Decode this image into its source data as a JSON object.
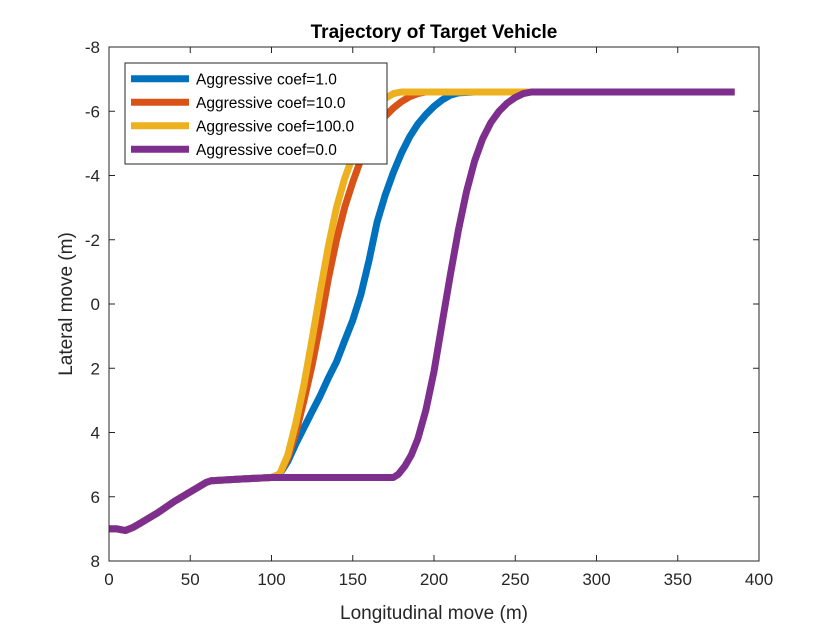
{
  "chart_data": {
    "type": "line",
    "title": "Trajectory of Target Vehicle",
    "xlabel": "Longitudinal move (m)",
    "ylabel": "Lateral move (m)",
    "xlim": [
      0,
      400
    ],
    "ylim": [
      8,
      -8
    ],
    "y_reversed": true,
    "xticks": [
      0,
      50,
      100,
      150,
      200,
      250,
      300,
      350,
      400
    ],
    "yticks": [
      8,
      6,
      4,
      2,
      0,
      -2,
      -4,
      -6,
      -8
    ],
    "grid": false,
    "legend_position": "top-left",
    "series": [
      {
        "name": "Aggressive coef=1.0",
        "color": "#0072BD",
        "x": [
          0,
          5,
          10,
          15,
          20,
          30,
          40,
          50,
          60,
          63,
          80,
          100,
          105,
          110,
          115,
          120,
          125,
          130,
          135,
          140,
          145,
          150,
          155,
          160,
          165,
          170,
          175,
          180,
          185,
          190,
          195,
          200,
          205,
          210,
          215,
          225,
          260,
          385
        ],
        "y": [
          7.0,
          7.0,
          7.05,
          6.95,
          6.8,
          6.5,
          6.15,
          5.85,
          5.55,
          5.5,
          5.45,
          5.4,
          5.3,
          4.9,
          4.35,
          3.85,
          3.35,
          2.85,
          2.3,
          1.8,
          1.15,
          0.5,
          -0.3,
          -1.35,
          -2.55,
          -3.4,
          -4.1,
          -4.7,
          -5.2,
          -5.6,
          -5.9,
          -6.15,
          -6.35,
          -6.5,
          -6.57,
          -6.6,
          -6.6,
          -6.6
        ]
      },
      {
        "name": "Aggressive coef=10.0",
        "color": "#D95319",
        "x": [
          0,
          5,
          10,
          15,
          20,
          30,
          40,
          50,
          60,
          63,
          80,
          100,
          105,
          110,
          115,
          120,
          125,
          130,
          135,
          140,
          145,
          150,
          155,
          160,
          165,
          170,
          175,
          180,
          185,
          190,
          195,
          200,
          260,
          385
        ],
        "y": [
          7.0,
          7.0,
          7.05,
          6.95,
          6.8,
          6.5,
          6.15,
          5.85,
          5.55,
          5.5,
          5.45,
          5.4,
          5.3,
          4.8,
          4.0,
          3.0,
          1.9,
          0.6,
          -0.8,
          -2.0,
          -3.0,
          -3.8,
          -4.5,
          -5.1,
          -5.5,
          -5.85,
          -6.1,
          -6.3,
          -6.45,
          -6.55,
          -6.6,
          -6.6,
          -6.6,
          -6.6
        ]
      },
      {
        "name": "Aggressive coef=100.0",
        "color": "#EDB120",
        "x": [
          0,
          5,
          10,
          15,
          20,
          30,
          40,
          50,
          60,
          63,
          80,
          100,
          105,
          110,
          115,
          120,
          125,
          130,
          135,
          140,
          145,
          150,
          155,
          160,
          165,
          170,
          175,
          180,
          185,
          260,
          385
        ],
        "y": [
          7.0,
          7.0,
          7.05,
          6.95,
          6.8,
          6.5,
          6.15,
          5.85,
          5.55,
          5.5,
          5.45,
          5.4,
          5.3,
          4.7,
          3.7,
          2.5,
          1.1,
          -0.4,
          -1.8,
          -3.0,
          -3.9,
          -4.6,
          -5.2,
          -5.7,
          -6.1,
          -6.4,
          -6.55,
          -6.6,
          -6.6,
          -6.6,
          -6.6
        ]
      },
      {
        "name": "Aggressive coef=0.0",
        "color": "#7E2F8E",
        "x": [
          0,
          5,
          10,
          15,
          20,
          30,
          40,
          50,
          60,
          63,
          80,
          100,
          150,
          175,
          178,
          182,
          186,
          190,
          195,
          200,
          205,
          210,
          215,
          220,
          225,
          230,
          235,
          240,
          245,
          250,
          255,
          260,
          265,
          300,
          350,
          385
        ],
        "y": [
          7.0,
          7.0,
          7.05,
          6.95,
          6.8,
          6.5,
          6.15,
          5.85,
          5.55,
          5.5,
          5.45,
          5.4,
          5.4,
          5.4,
          5.3,
          5.05,
          4.7,
          4.2,
          3.3,
          2.1,
          0.6,
          -0.9,
          -2.3,
          -3.5,
          -4.45,
          -5.15,
          -5.65,
          -6.0,
          -6.25,
          -6.43,
          -6.55,
          -6.6,
          -6.6,
          -6.6,
          -6.6,
          -6.6
        ]
      }
    ]
  }
}
